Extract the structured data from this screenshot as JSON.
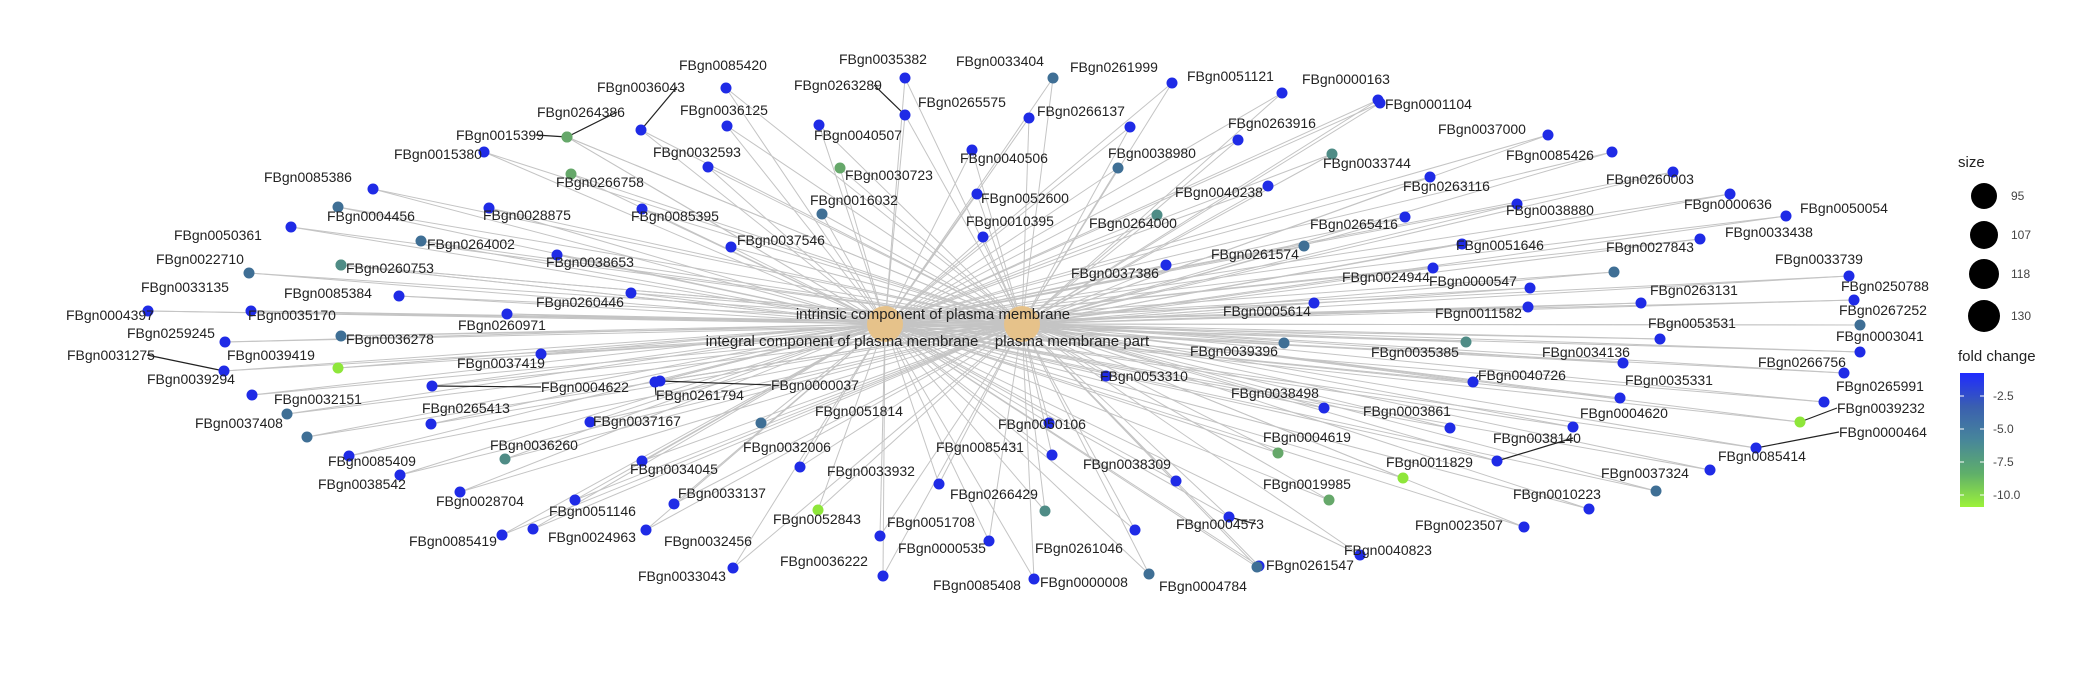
{
  "terms": [
    {
      "label": "intrinsic component of plasma membrane"
    },
    {
      "label": "integral component of plasma membrane"
    },
    {
      "label": "plasma membrane part"
    }
  ],
  "legend": {
    "size_title": "size",
    "size_values": [
      "95",
      "107",
      "118",
      "130"
    ],
    "color_title": "fold change",
    "color_values": [
      "-2.5",
      "-5.0",
      "-7.5",
      "-10.0"
    ],
    "gradient_colors": [
      "#1f2bff",
      "#3a5fb0",
      "#47869a",
      "#5faf6a",
      "#9cf23a"
    ]
  },
  "colors": {
    "term_node": "#e6c28a",
    "edge": "#c4c4c4",
    "gene_blue": "#1f2be6",
    "gene_steel": "#3f6f95",
    "gene_teal": "#4f8c86",
    "gene_green": "#66a86a",
    "gene_lime": "#8ee63a"
  },
  "genes": [
    {
      "id": "FBgn0085420",
      "color": "gene_blue"
    },
    {
      "id": "FBgn0035382",
      "color": "gene_blue"
    },
    {
      "id": "FBgn0033404",
      "color": "gene_steel"
    },
    {
      "id": "FBgn0261999",
      "color": "gene_blue"
    },
    {
      "id": "FBgn0051121",
      "color": "gene_blue"
    },
    {
      "id": "FBgn0000163",
      "color": "gene_blue"
    },
    {
      "id": "FBgn0001104",
      "color": "gene_blue"
    },
    {
      "id": "FBgn0036043",
      "color": "gene_blue"
    },
    {
      "id": "FBgn0263289",
      "color": "gene_blue"
    },
    {
      "id": "FBgn0265575",
      "color": "gene_blue"
    },
    {
      "id": "FBgn0264386",
      "color": "gene_green"
    },
    {
      "id": "FBgn0036125",
      "color": "gene_blue"
    },
    {
      "id": "FBgn0266137",
      "color": "gene_blue"
    },
    {
      "id": "FBgn0037000",
      "color": "gene_blue"
    },
    {
      "id": "FBgn0015399",
      "color": "gene_green"
    },
    {
      "id": "FBgn0040507",
      "color": "gene_blue"
    },
    {
      "id": "FBgn0263916",
      "color": "gene_blue"
    },
    {
      "id": "FBgn0015380",
      "color": "gene_blue"
    },
    {
      "id": "FBgn0032593",
      "color": "gene_blue"
    },
    {
      "id": "FBgn0040506",
      "color": "gene_blue"
    },
    {
      "id": "FBgn0038980",
      "color": "gene_steel"
    },
    {
      "id": "FBgn0085426",
      "color": "gene_blue"
    },
    {
      "id": "FBgn0030723",
      "color": "gene_green"
    },
    {
      "id": "FBgn0033744",
      "color": "gene_teal"
    },
    {
      "id": "FBgn0266758",
      "color": "gene_green"
    },
    {
      "id": "FBgn0085386",
      "color": "gene_blue"
    },
    {
      "id": "FBgn0260003",
      "color": "gene_blue"
    },
    {
      "id": "FBgn0016032",
      "color": "gene_steel"
    },
    {
      "id": "FBgn0052600",
      "color": "gene_blue"
    },
    {
      "id": "FBgn0040238",
      "color": "gene_blue"
    },
    {
      "id": "FBgn0263116",
      "color": "gene_blue"
    },
    {
      "id": "FBgn0028875",
      "color": "gene_blue"
    },
    {
      "id": "FBgn0085395",
      "color": "gene_blue"
    },
    {
      "id": "FBgn0000636",
      "color": "gene_blue"
    },
    {
      "id": "FBgn0038880",
      "color": "gene_blue"
    },
    {
      "id": "FBgn0050054",
      "color": "gene_blue"
    },
    {
      "id": "FBgn0004456",
      "color": "gene_steel"
    },
    {
      "id": "FBgn0010395",
      "color": "gene_blue"
    },
    {
      "id": "FBgn0264000",
      "color": "gene_teal"
    },
    {
      "id": "FBgn0265416",
      "color": "gene_blue"
    },
    {
      "id": "FBgn0050361",
      "color": "gene_blue"
    },
    {
      "id": "FBgn0264002",
      "color": "gene_steel"
    },
    {
      "id": "FBgn0037546",
      "color": "gene_blue"
    },
    {
      "id": "FBgn0033438",
      "color": "gene_blue"
    },
    {
      "id": "FBgn0051646",
      "color": "gene_blue"
    },
    {
      "id": "FBgn0022710",
      "color": "gene_green"
    },
    {
      "id": "FBgn0038653",
      "color": "gene_blue"
    },
    {
      "id": "FBgn0261574",
      "color": "gene_steel"
    },
    {
      "id": "FBgn0027843",
      "color": "gene_steel"
    },
    {
      "id": "FBgn0260753",
      "color": "gene_teal"
    },
    {
      "id": "FBgn0037386",
      "color": "gene_blue"
    },
    {
      "id": "FBgn0033739",
      "color": "gene_blue"
    },
    {
      "id": "FBgn0033135",
      "color": "gene_steel"
    },
    {
      "id": "FBgn0024944",
      "color": "gene_blue"
    },
    {
      "id": "FBgn0000547",
      "color": "gene_blue"
    },
    {
      "id": "FBgn0085384",
      "color": "gene_blue"
    },
    {
      "id": "FBgn0250788",
      "color": "gene_blue"
    },
    {
      "id": "FBgn0260446",
      "color": "gene_blue"
    },
    {
      "id": "FBgn0263131",
      "color": "gene_blue"
    },
    {
      "id": "FBgn0004397",
      "color": "gene_blue"
    },
    {
      "id": "FBgn0035170",
      "color": "gene_blue"
    },
    {
      "id": "FBgn0005614",
      "color": "gene_blue"
    },
    {
      "id": "FBgn0011582",
      "color": "gene_blue"
    },
    {
      "id": "FBgn0267252",
      "color": "gene_steel"
    },
    {
      "id": "FBgn0259245",
      "color": "gene_blue"
    },
    {
      "id": "FBgn0260971",
      "color": "gene_blue"
    },
    {
      "id": "FBgn0053531",
      "color": "gene_blue"
    },
    {
      "id": "FBgn0036278",
      "color": "gene_steel"
    },
    {
      "id": "FBgn0003041",
      "color": "gene_blue"
    },
    {
      "id": "FBgn0039396",
      "color": "gene_steel"
    },
    {
      "id": "FBgn0035385",
      "color": "gene_teal"
    },
    {
      "id": "FBgn0034136",
      "color": "gene_blue"
    },
    {
      "id": "FBgn0031275",
      "color": "gene_blue"
    },
    {
      "id": "FBgn0039419",
      "color": "gene_lime"
    },
    {
      "id": "FBgn0037419",
      "color": "gene_blue"
    },
    {
      "id": "FBgn0266756",
      "color": "gene_blue"
    },
    {
      "id": "FBgn0039294",
      "color": "gene_blue"
    },
    {
      "id": "FBgn0053310",
      "color": "gene_blue"
    },
    {
      "id": "FBgn0040726",
      "color": "gene_blue"
    },
    {
      "id": "FBgn0035331",
      "color": "gene_blue"
    },
    {
      "id": "FBgn0004622",
      "color": "gene_blue"
    },
    {
      "id": "FBgn0000037",
      "color": "gene_blue"
    },
    {
      "id": "FBgn0265991",
      "color": "gene_blue"
    },
    {
      "id": "FBgn0032151",
      "color": "gene_steel"
    },
    {
      "id": "FBgn0261794",
      "color": "gene_blue"
    },
    {
      "id": "FBgn0038498",
      "color": "gene_blue"
    },
    {
      "id": "FBgn0039232",
      "color": "gene_lime"
    },
    {
      "id": "FBgn0265413",
      "color": "gene_blue"
    },
    {
      "id": "FBgn0051814",
      "color": "gene_steel"
    },
    {
      "id": "FBgn0003861",
      "color": "gene_blue"
    },
    {
      "id": "FBgn0004620",
      "color": "gene_blue"
    },
    {
      "id": "FBgn0037408",
      "color": "gene_steel"
    },
    {
      "id": "FBgn0037167",
      "color": "gene_blue"
    },
    {
      "id": "FBgn0050106",
      "color": "gene_blue"
    },
    {
      "id": "FBgn0000464",
      "color": "gene_blue"
    },
    {
      "id": "FBgn0036260",
      "color": "gene_teal"
    },
    {
      "id": "FBgn0004619",
      "color": "gene_green"
    },
    {
      "id": "FBgn0038140",
      "color": "gene_blue"
    },
    {
      "id": "FBgn0032006",
      "color": "gene_blue"
    },
    {
      "id": "FBgn0085431",
      "color": "gene_blue"
    },
    {
      "id": "FBgn0085409",
      "color": "gene_blue"
    },
    {
      "id": "FBgn0034045",
      "color": "gene_blue"
    },
    {
      "id": "FBgn0011829",
      "color": "gene_lime"
    },
    {
      "id": "FBgn0085414",
      "color": "gene_blue"
    },
    {
      "id": "FBgn0038309",
      "color": "gene_blue"
    },
    {
      "id": "FBgn0033932",
      "color": "gene_blue"
    },
    {
      "id": "FBgn0038542",
      "color": "gene_blue"
    },
    {
      "id": "FBgn0019985",
      "color": "gene_green"
    },
    {
      "id": "FBgn0037324",
      "color": "gene_steel"
    },
    {
      "id": "FBgn0033137",
      "color": "gene_blue"
    },
    {
      "id": "FBgn0266429",
      "color": "gene_teal"
    },
    {
      "id": "FBgn0028704",
      "color": "gene_blue"
    },
    {
      "id": "FBgn0010223",
      "color": "gene_blue"
    },
    {
      "id": "FBgn0051146",
      "color": "gene_blue"
    },
    {
      "id": "FBgn0052843",
      "color": "gene_lime"
    },
    {
      "id": "FBgn0004573",
      "color": "gene_blue"
    },
    {
      "id": "FBgn0023507",
      "color": "gene_blue"
    },
    {
      "id": "FBgn0051708",
      "color": "gene_blue"
    },
    {
      "id": "FBgn0024963",
      "color": "gene_blue"
    },
    {
      "id": "FBgn0085419",
      "color": "gene_blue"
    },
    {
      "id": "FBgn0032456",
      "color": "gene_blue"
    },
    {
      "id": "FBgn0000535",
      "color": "gene_blue"
    },
    {
      "id": "FBgn0261046",
      "color": "gene_blue"
    },
    {
      "id": "FBgn0040823",
      "color": "gene_blue"
    },
    {
      "id": "FBgn0261547",
      "color": "gene_blue"
    },
    {
      "id": "FBgn0036222",
      "color": "gene_blue"
    },
    {
      "id": "FBgn0033043",
      "color": "gene_blue"
    },
    {
      "id": "FBgn0085408",
      "color": "gene_blue"
    },
    {
      "id": "FBgn0000008",
      "color": "gene_steel"
    },
    {
      "id": "FBgn0004784",
      "color": "gene_steel"
    }
  ]
}
